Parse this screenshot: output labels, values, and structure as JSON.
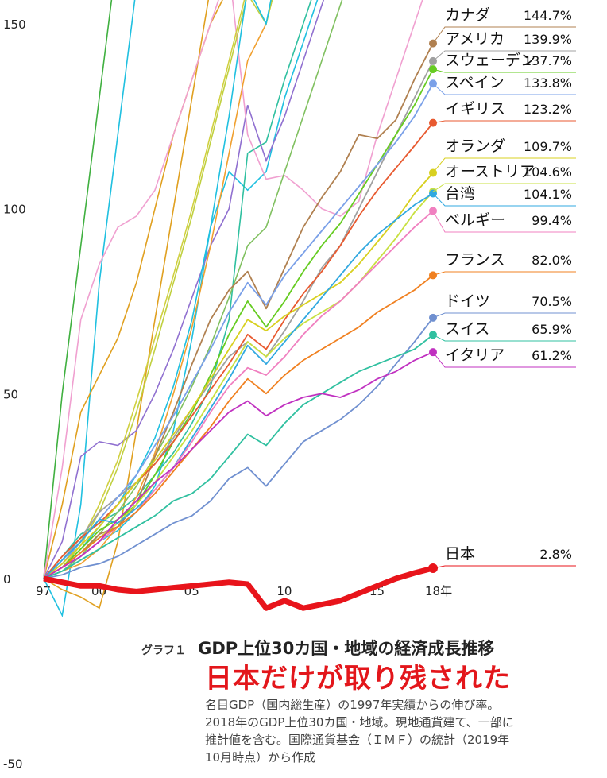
{
  "chart_data": {
    "type": "line",
    "x_axis": {
      "min": 1997,
      "max": 2018,
      "ticks": [
        {
          "value": 1997,
          "label": "97"
        },
        {
          "value": 2000,
          "label": "00"
        },
        {
          "value": 2005,
          "label": "05"
        },
        {
          "value": 2010,
          "label": "10"
        },
        {
          "value": 2015,
          "label": "15"
        },
        {
          "value": 2018,
          "label": "18年"
        }
      ]
    },
    "y_axis": {
      "min": -50,
      "max": 150,
      "ticks": [
        150,
        100,
        50,
        0,
        -50
      ]
    },
    "x": [
      1997,
      1998,
      1999,
      2000,
      2001,
      2002,
      2003,
      2004,
      2005,
      2006,
      2007,
      2008,
      2009,
      2010,
      2011,
      2012,
      2013,
      2014,
      2015,
      2016,
      2017,
      2018
    ],
    "series": [
      {
        "name": "カナダ",
        "value_label": "144.7%",
        "color": "#b08050",
        "values": [
          0,
          3,
          7,
          12,
          14,
          20,
          33,
          45,
          58,
          70,
          78,
          83,
          73,
          84,
          95,
          103,
          110,
          120,
          119,
          124,
          135,
          144.7
        ]
      },
      {
        "name": "アメリカ",
        "value_label": "139.9%",
        "color": "#a0a0a0",
        "values": [
          0,
          5,
          11,
          18,
          22,
          26,
          31,
          38,
          46,
          53,
          60,
          64,
          60,
          67,
          75,
          84,
          90,
          100,
          110,
          120,
          130,
          139.9
        ]
      },
      {
        "name": "スウェーデン",
        "value_label": "137.7%",
        "color": "#66cc22",
        "values": [
          0,
          3,
          8,
          13,
          16,
          20,
          28,
          37,
          45,
          55,
          66,
          75,
          68,
          75,
          83,
          90,
          96,
          104,
          112,
          120,
          128,
          137.7
        ]
      },
      {
        "name": "スペイン",
        "value_label": "133.8%",
        "color": "#7aa0e8",
        "values": [
          0,
          4,
          10,
          16,
          22,
          28,
          36,
          44,
          53,
          62,
          72,
          80,
          74,
          82,
          88,
          94,
          100,
          106,
          112,
          118,
          125,
          133.8
        ]
      },
      {
        "name": "イギリス",
        "value_label": "123.2%",
        "color": "#e85a30",
        "values": [
          0,
          6,
          11,
          15,
          20,
          26,
          31,
          37,
          44,
          51,
          58,
          66,
          62,
          70,
          77,
          83,
          90,
          98,
          105,
          111,
          117,
          123.2
        ]
      },
      {
        "name": "オランダ",
        "value_label": "109.7%",
        "color": "#d8d020",
        "values": [
          0,
          4,
          9,
          14,
          20,
          26,
          32,
          39,
          46,
          54,
          62,
          70,
          67,
          71,
          74,
          77,
          80,
          85,
          91,
          97,
          104,
          109.7
        ]
      },
      {
        "name": "オーストリア",
        "value_label": "104.6%",
        "color": "#c8e040",
        "values": [
          0,
          3,
          7,
          11,
          15,
          20,
          26,
          33,
          40,
          48,
          56,
          64,
          60,
          65,
          69,
          72,
          75,
          80,
          86,
          92,
          99,
          104.6
        ]
      },
      {
        "name": "台湾",
        "value_label": "104.1%",
        "color": "#30a8e0",
        "values": [
          0,
          5,
          10,
          16,
          15,
          19,
          24,
          30,
          38,
          46,
          54,
          63,
          58,
          64,
          70,
          76,
          82,
          88,
          93,
          97,
          101,
          104.1
        ]
      },
      {
        "name": "ベルギー",
        "value_label": "99.4%",
        "color": "#f080c0",
        "values": [
          0,
          3,
          6,
          10,
          14,
          18,
          24,
          30,
          37,
          45,
          52,
          57,
          55,
          60,
          66,
          71,
          75,
          80,
          85,
          90,
          95,
          99.4
        ]
      },
      {
        "name": "フランス",
        "value_label": "82.0%",
        "color": "#f08020",
        "values": [
          0,
          3,
          7,
          11,
          14,
          18,
          23,
          29,
          35,
          41,
          48,
          54,
          50,
          55,
          59,
          62,
          65,
          68,
          72,
          75,
          78,
          82.0
        ]
      },
      {
        "name": "ドイツ",
        "value_label": "70.5%",
        "color": "#7090d0",
        "values": [
          0,
          1,
          3,
          4,
          6,
          9,
          12,
          15,
          17,
          21,
          27,
          30,
          25,
          31,
          37,
          40,
          43,
          47,
          52,
          58,
          64,
          70.5
        ]
      },
      {
        "name": "スイス",
        "value_label": "65.9%",
        "color": "#30c0a0",
        "values": [
          0,
          2,
          5,
          8,
          11,
          14,
          17,
          21,
          23,
          27,
          33,
          39,
          36,
          42,
          47,
          50,
          53,
          56,
          58,
          60,
          62,
          65.9
        ]
      },
      {
        "name": "イタリア",
        "value_label": "61.2%",
        "color": "#c030c0",
        "values": [
          0,
          3,
          6,
          10,
          16,
          21,
          26,
          30,
          35,
          40,
          45,
          48,
          44,
          47,
          49,
          50,
          49,
          51,
          54,
          56,
          59,
          61.2
        ]
      },
      {
        "name": "日本",
        "value_label": "2.8%",
        "color": "#e8141b",
        "values": [
          0,
          -1,
          -2,
          -2,
          -3,
          -3.5,
          -3,
          -2.5,
          -2,
          -1.5,
          -1,
          -1.5,
          -8,
          -6,
          -8,
          -7,
          -6,
          -4,
          -2,
          0,
          1.5,
          2.8
        ]
      }
    ],
    "background_series": [
      {
        "color": "#20c0e0",
        "values": [
          0,
          -10,
          20,
          80,
          120,
          160,
          200,
          240,
          280,
          320,
          360,
          400,
          380,
          420,
          460,
          500,
          540,
          580,
          620,
          660,
          700,
          740
        ]
      },
      {
        "color": "#40b040",
        "values": [
          0,
          50,
          90,
          130,
          170,
          210,
          250,
          290,
          330,
          370,
          410,
          450,
          430,
          470,
          510,
          550,
          590,
          630,
          670,
          710,
          750,
          790
        ]
      },
      {
        "color": "#e0a020",
        "values": [
          0,
          20,
          45,
          55,
          65,
          80,
          100,
          120,
          135,
          150,
          160,
          170,
          175,
          190,
          205,
          220,
          235,
          250,
          265,
          280,
          295,
          310
        ]
      },
      {
        "color": "#e0a020",
        "values": [
          0,
          -3,
          -5,
          -8,
          10,
          40,
          70,
          100,
          130,
          160,
          190,
          210,
          215,
          230,
          245,
          260,
          275,
          290,
          305,
          320,
          335,
          350
        ]
      },
      {
        "color": "#20c0e0",
        "values": [
          0,
          2,
          6,
          10,
          13,
          18,
          25,
          40,
          65,
          95,
          110,
          105,
          110,
          130,
          145,
          160,
          175,
          190,
          205,
          220,
          235,
          250
        ]
      },
      {
        "color": "#9070d0",
        "values": [
          0,
          10,
          33,
          37,
          36,
          40,
          50,
          62,
          76,
          90,
          100,
          128,
          113,
          125,
          140,
          155,
          170,
          185,
          200,
          215,
          230,
          245
        ]
      },
      {
        "color": "#f0a0d0",
        "values": [
          0,
          30,
          70,
          85,
          95,
          98,
          105,
          120,
          135,
          150,
          165,
          120,
          108,
          109,
          105,
          100,
          98,
          102,
          120,
          135,
          150,
          165
        ]
      },
      {
        "color": "#30c0a0",
        "values": [
          0,
          6,
          12,
          15,
          18,
          22,
          28,
          34,
          42,
          52,
          70,
          115,
          118,
          135,
          150,
          165,
          180,
          195,
          210,
          225,
          240,
          255
        ]
      },
      {
        "color": "#d0d040",
        "values": [
          0,
          4,
          10,
          20,
          32,
          48,
          65,
          82,
          100,
          120,
          140,
          160,
          170,
          185,
          200,
          215,
          230,
          245,
          260,
          275,
          290,
          305
        ]
      },
      {
        "color": "#f0a030",
        "values": [
          0,
          2,
          4,
          8,
          14,
          22,
          34,
          50,
          68,
          90,
          115,
          140,
          150,
          170,
          190,
          210,
          230,
          250,
          270,
          290,
          310,
          330
        ]
      },
      {
        "color": "#c0d040",
        "values": [
          0,
          3,
          9,
          18,
          30,
          45,
          62,
          80,
          98,
          118,
          138,
          158,
          150,
          170,
          190,
          210,
          230,
          250,
          270,
          290,
          310,
          330
        ]
      },
      {
        "color": "#20c0e0",
        "values": [
          0,
          3,
          8,
          14,
          20,
          28,
          38,
          52,
          70,
          95,
          125,
          160,
          150,
          175,
          200,
          225,
          250,
          275,
          300,
          325,
          350,
          375
        ]
      },
      {
        "color": "#80c060",
        "values": [
          0,
          2,
          6,
          12,
          18,
          25,
          33,
          42,
          52,
          63,
          76,
          90,
          95,
          110,
          125,
          140,
          155,
          170,
          185,
          200,
          215,
          230
        ]
      }
    ],
    "grid": false,
    "legend": "right, inline at line ends"
  },
  "caption": {
    "graph_label": "グラフ１",
    "title": "GDP上位30カ国・地域の経済成長推移",
    "headline": "日本だけが取り残された",
    "note": "名目GDP（国内総生産）の1997年実績からの伸び率。2018年のGDP上位30カ国・地域。現地通貨建て、一部に推計値を含む。国際通貨基金（ＩＭＦ）の統計（2019年10月時点）から作成"
  }
}
